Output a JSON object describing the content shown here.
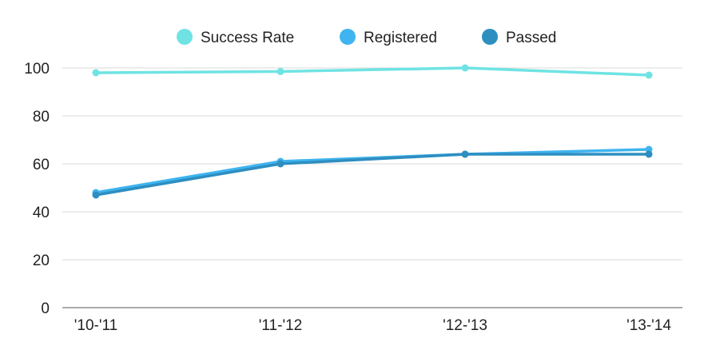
{
  "chart_data": {
    "type": "line",
    "title": "",
    "xlabel": "",
    "ylabel": "",
    "categories": [
      "'10-'11",
      "'11-'12",
      "'12-'13",
      "'13-'14"
    ],
    "yticks": [
      0,
      20,
      40,
      60,
      80,
      100
    ],
    "ylim": [
      0,
      100
    ],
    "grid": true,
    "legend_position": "top-center",
    "series": [
      {
        "name": "Success Rate",
        "color": "#6fe3e3",
        "values": [
          98,
          98.5,
          100,
          97
        ]
      },
      {
        "name": "Registered",
        "color": "#3fb4f0",
        "values": [
          48,
          61,
          64,
          66
        ]
      },
      {
        "name": "Passed",
        "color": "#2e8ec0",
        "values": [
          47,
          60,
          64,
          64
        ]
      }
    ]
  }
}
